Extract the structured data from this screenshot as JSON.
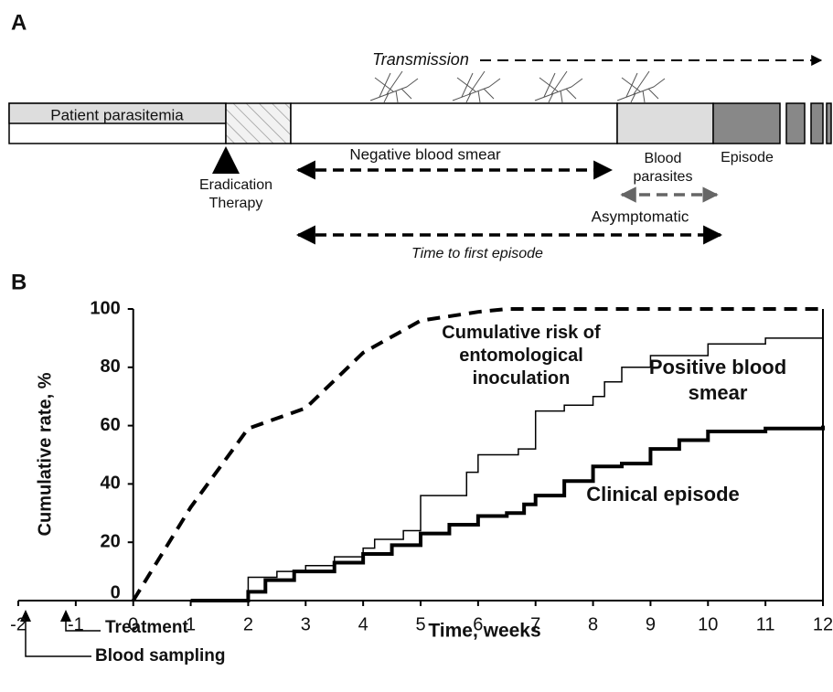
{
  "diagram": {
    "panel_label": "A",
    "transmission": "Transmission",
    "patient_parasitemia": "Patient parasitemia",
    "negative_blood_smear": "Negative blood smear",
    "blood_parasites": "Blood parasites",
    "episode": "Episode",
    "eradication_therapy": "Eradication Therapy",
    "asymptomatic": "Asymptomatic",
    "time_to_first_episode": "Time to first episode"
  },
  "chart_data": {
    "type": "line",
    "panel_label": "B",
    "ylabel": "Cumulative rate, %",
    "xlabel": "Time, weeks",
    "xlim": [
      -2,
      12
    ],
    "ylim": [
      0,
      100
    ],
    "xticks": [
      -2,
      -1,
      0,
      1,
      2,
      3,
      4,
      5,
      6,
      7,
      8,
      9,
      10,
      11,
      12
    ],
    "yticks": [
      0,
      20,
      40,
      60,
      80,
      100
    ],
    "series": [
      {
        "name": "Cumulative risk of entomological inoculation",
        "color": "#000000",
        "dash": true,
        "step": false,
        "width": 4,
        "x": [
          0,
          1,
          2,
          3,
          4,
          5,
          6,
          6.5,
          12
        ],
        "values": [
          0,
          32,
          59,
          66,
          85,
          96,
          99,
          100,
          100
        ]
      },
      {
        "name": "Positive blood smear",
        "color": "#000000",
        "dash": false,
        "step": true,
        "width": 1.5,
        "x": [
          1,
          2,
          2.5,
          3,
          3.5,
          4,
          4.2,
          4.7,
          5,
          5.8,
          6,
          6.7,
          7,
          7.5,
          8,
          8.2,
          8.5,
          9,
          10,
          11,
          12
        ],
        "values": [
          0,
          8,
          10,
          12,
          15,
          18,
          21,
          24,
          36,
          44,
          50,
          52,
          65,
          67,
          70,
          75,
          80,
          84,
          88,
          90,
          91
        ]
      },
      {
        "name": "Clinical episode",
        "color": "#000000",
        "dash": false,
        "step": true,
        "width": 4,
        "x": [
          1,
          2,
          2.3,
          2.8,
          3.5,
          4,
          4.5,
          5,
          5.5,
          6,
          6.5,
          6.8,
          7,
          7.5,
          8,
          8.5,
          9,
          9.5,
          10,
          11,
          12
        ],
        "values": [
          0,
          3,
          7,
          10,
          13,
          16,
          19,
          23,
          26,
          29,
          30,
          33,
          36,
          41,
          46,
          47,
          52,
          55,
          58,
          59,
          60
        ]
      }
    ],
    "annotations": [
      {
        "text": "Treatment"
      },
      {
        "text": "Blood sampling"
      }
    ]
  }
}
